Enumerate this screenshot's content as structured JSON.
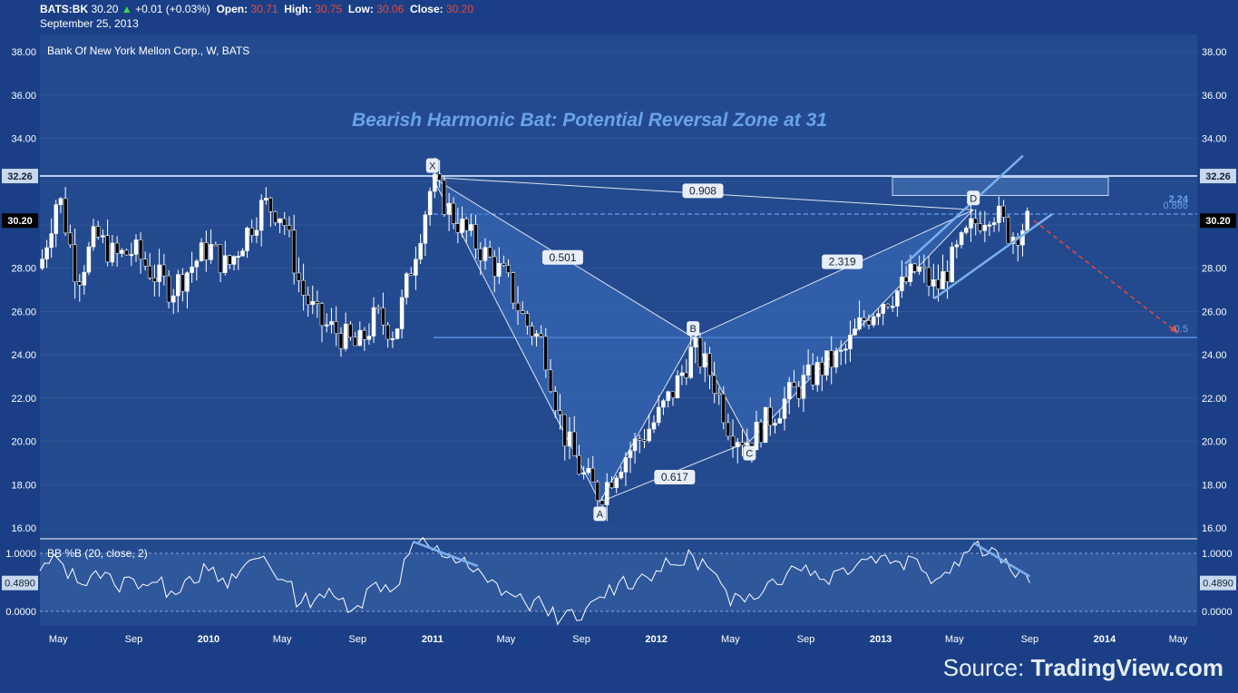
{
  "header": {
    "symbol": "BATS:BK",
    "last": "30.20",
    "change_arrow": "▲",
    "change": "+0.01 (+0.03%)",
    "open_label": "Open:",
    "open": "30.71",
    "high_label": "High:",
    "high": "30.75",
    "low_label": "Low:",
    "low": "30.06",
    "close_label": "Close:",
    "close": "30.20",
    "date": "September 25, 2013"
  },
  "source": {
    "prefix": "Source:",
    "brand": "TradingView.com"
  },
  "colors": {
    "background": "#1b3f86",
    "panel": "#234a8f",
    "accent": "#7ab0ee",
    "title": "#6aa3e8",
    "bear": "#e8493f",
    "bull": "#3ddc4a"
  },
  "chart_data": [
    {
      "type": "candlestick",
      "title": "Bank Of New York Mellon Corp., W, BATS",
      "annotation_title": "Bearish Harmonic Bat: Potential Reversal Zone at 31",
      "x_tick_labels": [
        "May",
        "Sep",
        "2010",
        "May",
        "Sep",
        "2011",
        "May",
        "Sep",
        "2012",
        "May",
        "Sep",
        "2013",
        "May",
        "Sep",
        "2014",
        "May"
      ],
      "y_tick_labels": [
        "38.00",
        "36.00",
        "34.00",
        "32.26",
        "30.20",
        "28.00",
        "26.00",
        "24.00",
        "22.00",
        "20.00",
        "18.00",
        "16.00"
      ],
      "y_ticks": [
        38,
        36,
        34,
        32,
        30,
        28,
        26,
        24,
        22,
        20,
        18,
        16
      ],
      "ylim": [
        15.5,
        38.8
      ],
      "price_badges": [
        {
          "label": "32.26",
          "value": 32.26
        },
        {
          "label": "30.20",
          "value": 30.2
        }
      ],
      "horizontal_levels": [
        32.26,
        30.5,
        24.8
      ],
      "pattern_points": [
        {
          "label": "X",
          "date": "2011-01",
          "value": 32.2
        },
        {
          "label": "A",
          "date": "2011-10",
          "value": 17.2
        },
        {
          "label": "B",
          "date": "2012-03",
          "value": 24.8
        },
        {
          "label": "C",
          "date": "2012-06",
          "value": 20.0
        },
        {
          "label": "D",
          "date": "2013-06",
          "value": 30.7
        }
      ],
      "ratio_labels": [
        "0.501",
        "0.617",
        "0.908",
        "2.319",
        "2.24",
        "0.886",
        "0.5"
      ],
      "weekly_close_points": [
        [
          "2009-04",
          28.0
        ],
        [
          "2009-05",
          31.5
        ],
        [
          "2009-06",
          27.5
        ],
        [
          "2009-07",
          29.5
        ],
        [
          "2009-08",
          28.5
        ],
        [
          "2009-09",
          28.8
        ],
        [
          "2009-10",
          27.8
        ],
        [
          "2009-11",
          27.0
        ],
        [
          "2009-12",
          28.0
        ],
        [
          "2010-01",
          29.0
        ],
        [
          "2010-02",
          28.0
        ],
        [
          "2010-03",
          29.5
        ],
        [
          "2010-04",
          31.0
        ],
        [
          "2010-05",
          30.5
        ],
        [
          "2010-06",
          27.0
        ],
        [
          "2010-07",
          25.5
        ],
        [
          "2010-08",
          25.0
        ],
        [
          "2010-09",
          24.3
        ],
        [
          "2010-10",
          25.8
        ],
        [
          "2010-11",
          25.0
        ],
        [
          "2010-12",
          28.5
        ],
        [
          "2011-01",
          32.0
        ],
        [
          "2011-02",
          30.5
        ],
        [
          "2011-03",
          29.5
        ],
        [
          "2011-04",
          28.5
        ],
        [
          "2011-05",
          27.5
        ],
        [
          "2011-06",
          25.5
        ],
        [
          "2011-07",
          24.5
        ],
        [
          "2011-08",
          20.5
        ],
        [
          "2011-09",
          18.5
        ],
        [
          "2011-10",
          17.5
        ],
        [
          "2011-11",
          19.0
        ],
        [
          "2011-12",
          20.0
        ],
        [
          "2012-01",
          21.0
        ],
        [
          "2012-02",
          22.5
        ],
        [
          "2012-03",
          24.3
        ],
        [
          "2012-04",
          23.0
        ],
        [
          "2012-05",
          20.5
        ],
        [
          "2012-06",
          20.0
        ],
        [
          "2012-07",
          21.0
        ],
        [
          "2012-08",
          22.0
        ],
        [
          "2012-09",
          22.8
        ],
        [
          "2012-10",
          23.5
        ],
        [
          "2012-11",
          24.0
        ],
        [
          "2012-12",
          25.5
        ],
        [
          "2013-01",
          26.5
        ],
        [
          "2013-02",
          27.0
        ],
        [
          "2013-03",
          28.0
        ],
        [
          "2013-04",
          27.0
        ],
        [
          "2013-05",
          28.5
        ],
        [
          "2013-06",
          30.0
        ],
        [
          "2013-07",
          30.8
        ],
        [
          "2013-08",
          29.5
        ],
        [
          "2013-09",
          30.2
        ]
      ],
      "projection_target": 25.0,
      "projection_date": "2014-05"
    },
    {
      "type": "line",
      "title": "BB %B (20, close, 2)",
      "y_tick_labels": [
        "1.0000",
        "0.0000"
      ],
      "ylim": [
        -0.25,
        1.25
      ],
      "bands": [
        0,
        1
      ],
      "current_label": "0.4890",
      "current_value": 0.489,
      "points": [
        [
          "2009-04",
          0.7
        ],
        [
          "2009-05",
          0.9
        ],
        [
          "2009-06",
          0.5
        ],
        [
          "2009-07",
          0.7
        ],
        [
          "2009-08",
          0.45
        ],
        [
          "2009-09",
          0.55
        ],
        [
          "2009-10",
          0.5
        ],
        [
          "2009-11",
          0.35
        ],
        [
          "2009-12",
          0.6
        ],
        [
          "2010-01",
          0.7
        ],
        [
          "2010-02",
          0.4
        ],
        [
          "2010-03",
          0.8
        ],
        [
          "2010-04",
          0.95
        ],
        [
          "2010-05",
          0.55
        ],
        [
          "2010-06",
          0.15
        ],
        [
          "2010-07",
          0.3
        ],
        [
          "2010-08",
          0.2
        ],
        [
          "2010-09",
          0.1
        ],
        [
          "2010-10",
          0.5
        ],
        [
          "2010-11",
          0.4
        ],
        [
          "2010-12",
          1.2
        ],
        [
          "2011-01",
          1.05
        ],
        [
          "2011-02",
          0.95
        ],
        [
          "2011-03",
          0.75
        ],
        [
          "2011-04",
          0.5
        ],
        [
          "2011-05",
          0.35
        ],
        [
          "2011-06",
          0.15
        ],
        [
          "2011-07",
          0.1
        ],
        [
          "2011-08",
          -0.1
        ],
        [
          "2011-09",
          -0.15
        ],
        [
          "2011-10",
          0.25
        ],
        [
          "2011-11",
          0.5
        ],
        [
          "2011-12",
          0.55
        ],
        [
          "2012-01",
          0.7
        ],
        [
          "2012-02",
          0.8
        ],
        [
          "2012-03",
          0.95
        ],
        [
          "2012-04",
          0.7
        ],
        [
          "2012-05",
          0.1
        ],
        [
          "2012-06",
          0.3
        ],
        [
          "2012-07",
          0.5
        ],
        [
          "2012-08",
          0.65
        ],
        [
          "2012-09",
          0.8
        ],
        [
          "2012-10",
          0.55
        ],
        [
          "2012-11",
          0.75
        ],
        [
          "2012-12",
          0.9
        ],
        [
          "2013-01",
          0.95
        ],
        [
          "2013-02",
          0.85
        ],
        [
          "2013-03",
          0.9
        ],
        [
          "2013-04",
          0.55
        ],
        [
          "2013-05",
          0.85
        ],
        [
          "2013-06",
          1.15
        ],
        [
          "2013-07",
          1.1
        ],
        [
          "2013-08",
          0.7
        ],
        [
          "2013-09",
          0.489
        ]
      ]
    }
  ]
}
